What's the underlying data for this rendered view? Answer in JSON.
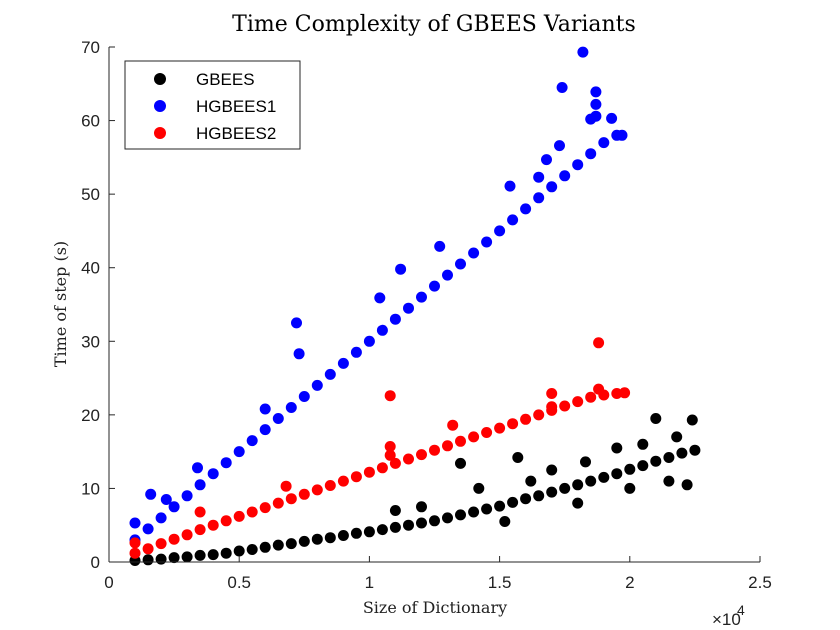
{
  "chart_data": {
    "type": "scatter",
    "title": "Time Complexity of GBEES Variants",
    "xlabel": "Size of Dictionary",
    "ylabel": "Time of step (s)",
    "x_exponent_label": "×10",
    "x_exponent_power": "4",
    "xlim": [
      0,
      2.5
    ],
    "ylim": [
      0,
      70
    ],
    "xticks": [
      "0",
      "0.5",
      "1",
      "1.5",
      "2",
      "2.5"
    ],
    "yticks": [
      "0",
      "10",
      "20",
      "30",
      "40",
      "50",
      "60",
      "70"
    ],
    "grid": false,
    "legend_position": "top-left",
    "series": [
      {
        "name": "GBEES",
        "color": "#000000",
        "points": [
          [
            0.1,
            0.2
          ],
          [
            0.15,
            0.3
          ],
          [
            0.2,
            0.4
          ],
          [
            0.25,
            0.6
          ],
          [
            0.3,
            0.7
          ],
          [
            0.35,
            0.9
          ],
          [
            0.4,
            1.0
          ],
          [
            0.45,
            1.2
          ],
          [
            0.5,
            1.5
          ],
          [
            0.55,
            1.7
          ],
          [
            0.6,
            2.0
          ],
          [
            0.65,
            2.3
          ],
          [
            0.7,
            2.5
          ],
          [
            0.75,
            2.8
          ],
          [
            0.8,
            3.1
          ],
          [
            0.85,
            3.3
          ],
          [
            0.9,
            3.6
          ],
          [
            0.95,
            3.9
          ],
          [
            1.0,
            4.1
          ],
          [
            1.05,
            4.4
          ],
          [
            1.1,
            4.7
          ],
          [
            1.15,
            5.0
          ],
          [
            1.2,
            5.3
          ],
          [
            1.25,
            5.6
          ],
          [
            1.3,
            6.0
          ],
          [
            1.35,
            6.4
          ],
          [
            1.4,
            6.8
          ],
          [
            1.45,
            7.2
          ],
          [
            1.5,
            7.6
          ],
          [
            1.55,
            8.1
          ],
          [
            1.6,
            8.6
          ],
          [
            1.65,
            9.0
          ],
          [
            1.7,
            9.5
          ],
          [
            1.75,
            10.0
          ],
          [
            1.8,
            10.5
          ],
          [
            1.85,
            11.0
          ],
          [
            1.9,
            11.5
          ],
          [
            1.95,
            12.0
          ],
          [
            2.0,
            12.6
          ],
          [
            2.05,
            13.1
          ],
          [
            2.1,
            13.7
          ],
          [
            2.15,
            14.2
          ],
          [
            2.2,
            14.8
          ],
          [
            2.25,
            15.2
          ],
          [
            1.35,
            13.4
          ],
          [
            1.57,
            14.2
          ],
          [
            1.7,
            12.5
          ],
          [
            1.83,
            13.6
          ],
          [
            1.95,
            15.5
          ],
          [
            2.05,
            16.0
          ],
          [
            2.1,
            19.5
          ],
          [
            2.24,
            19.3
          ],
          [
            2.18,
            17.0
          ],
          [
            1.1,
            7.0
          ],
          [
            1.2,
            7.5
          ],
          [
            1.42,
            10.0
          ],
          [
            1.62,
            11.0
          ],
          [
            1.52,
            5.5
          ],
          [
            1.8,
            8.0
          ],
          [
            2.0,
            10.0
          ],
          [
            2.15,
            11.0
          ],
          [
            2.22,
            10.5
          ]
        ]
      },
      {
        "name": "HGBEES1",
        "color": "#0000ff",
        "points": [
          [
            0.1,
            3.0
          ],
          [
            0.15,
            4.5
          ],
          [
            0.2,
            6.0
          ],
          [
            0.25,
            7.5
          ],
          [
            0.3,
            9.0
          ],
          [
            0.35,
            10.5
          ],
          [
            0.4,
            12.0
          ],
          [
            0.45,
            13.5
          ],
          [
            0.5,
            15.0
          ],
          [
            0.55,
            16.5
          ],
          [
            0.6,
            18.0
          ],
          [
            0.65,
            19.5
          ],
          [
            0.7,
            21.0
          ],
          [
            0.75,
            22.5
          ],
          [
            0.8,
            24.0
          ],
          [
            0.85,
            25.5
          ],
          [
            0.9,
            27.0
          ],
          [
            0.95,
            28.5
          ],
          [
            1.0,
            30.0
          ],
          [
            1.05,
            31.5
          ],
          [
            1.1,
            33.0
          ],
          [
            1.15,
            34.5
          ],
          [
            1.2,
            36.0
          ],
          [
            1.25,
            37.5
          ],
          [
            1.3,
            39.0
          ],
          [
            1.35,
            40.5
          ],
          [
            1.4,
            42.0
          ],
          [
            1.45,
            43.5
          ],
          [
            1.5,
            45.0
          ],
          [
            1.55,
            46.5
          ],
          [
            1.6,
            48.0
          ],
          [
            1.65,
            49.5
          ],
          [
            1.7,
            51.0
          ],
          [
            1.75,
            52.5
          ],
          [
            1.8,
            54.0
          ],
          [
            1.85,
            55.5
          ],
          [
            1.9,
            57.0
          ],
          [
            1.95,
            58.0
          ],
          [
            1.97,
            58.0
          ],
          [
            0.1,
            5.3
          ],
          [
            0.16,
            9.2
          ],
          [
            0.22,
            8.5
          ],
          [
            0.34,
            12.8
          ],
          [
            0.6,
            20.8
          ],
          [
            0.72,
            32.5
          ],
          [
            0.73,
            28.3
          ],
          [
            1.04,
            35.9
          ],
          [
            1.12,
            39.8
          ],
          [
            1.27,
            42.9
          ],
          [
            1.54,
            51.1
          ],
          [
            1.65,
            52.3
          ],
          [
            1.68,
            54.7
          ],
          [
            1.73,
            56.6
          ],
          [
            1.74,
            64.5
          ],
          [
            1.82,
            69.3
          ],
          [
            1.85,
            60.2
          ],
          [
            1.87,
            63.9
          ],
          [
            1.87,
            62.2
          ],
          [
            1.87,
            60.6
          ],
          [
            1.93,
            60.3
          ]
        ]
      },
      {
        "name": "HGBEES2",
        "color": "#ff0000",
        "points": [
          [
            0.1,
            1.2
          ],
          [
            0.15,
            1.8
          ],
          [
            0.2,
            2.5
          ],
          [
            0.25,
            3.1
          ],
          [
            0.3,
            3.7
          ],
          [
            0.35,
            4.4
          ],
          [
            0.4,
            5.0
          ],
          [
            0.45,
            5.6
          ],
          [
            0.5,
            6.2
          ],
          [
            0.55,
            6.8
          ],
          [
            0.6,
            7.4
          ],
          [
            0.65,
            8.0
          ],
          [
            0.7,
            8.6
          ],
          [
            0.75,
            9.2
          ],
          [
            0.8,
            9.8
          ],
          [
            0.85,
            10.4
          ],
          [
            0.9,
            11.0
          ],
          [
            0.95,
            11.6
          ],
          [
            1.0,
            12.2
          ],
          [
            1.05,
            12.8
          ],
          [
            1.1,
            13.4
          ],
          [
            1.15,
            14.0
          ],
          [
            1.2,
            14.6
          ],
          [
            1.25,
            15.2
          ],
          [
            1.3,
            15.8
          ],
          [
            1.35,
            16.4
          ],
          [
            1.4,
            17.0
          ],
          [
            1.45,
            17.6
          ],
          [
            1.5,
            18.2
          ],
          [
            1.55,
            18.8
          ],
          [
            1.6,
            19.4
          ],
          [
            1.65,
            20.0
          ],
          [
            1.7,
            20.6
          ],
          [
            1.75,
            21.2
          ],
          [
            1.8,
            21.8
          ],
          [
            1.85,
            22.4
          ],
          [
            1.9,
            22.7
          ],
          [
            1.95,
            22.9
          ],
          [
            1.98,
            23.0
          ],
          [
            0.1,
            2.6
          ],
          [
            0.35,
            6.8
          ],
          [
            0.68,
            10.3
          ],
          [
            1.08,
            22.6
          ],
          [
            1.08,
            15.7
          ],
          [
            1.08,
            14.5
          ],
          [
            1.32,
            18.6
          ],
          [
            1.7,
            22.9
          ],
          [
            1.7,
            21.1
          ],
          [
            1.88,
            29.8
          ],
          [
            1.88,
            23.5
          ]
        ]
      }
    ]
  }
}
